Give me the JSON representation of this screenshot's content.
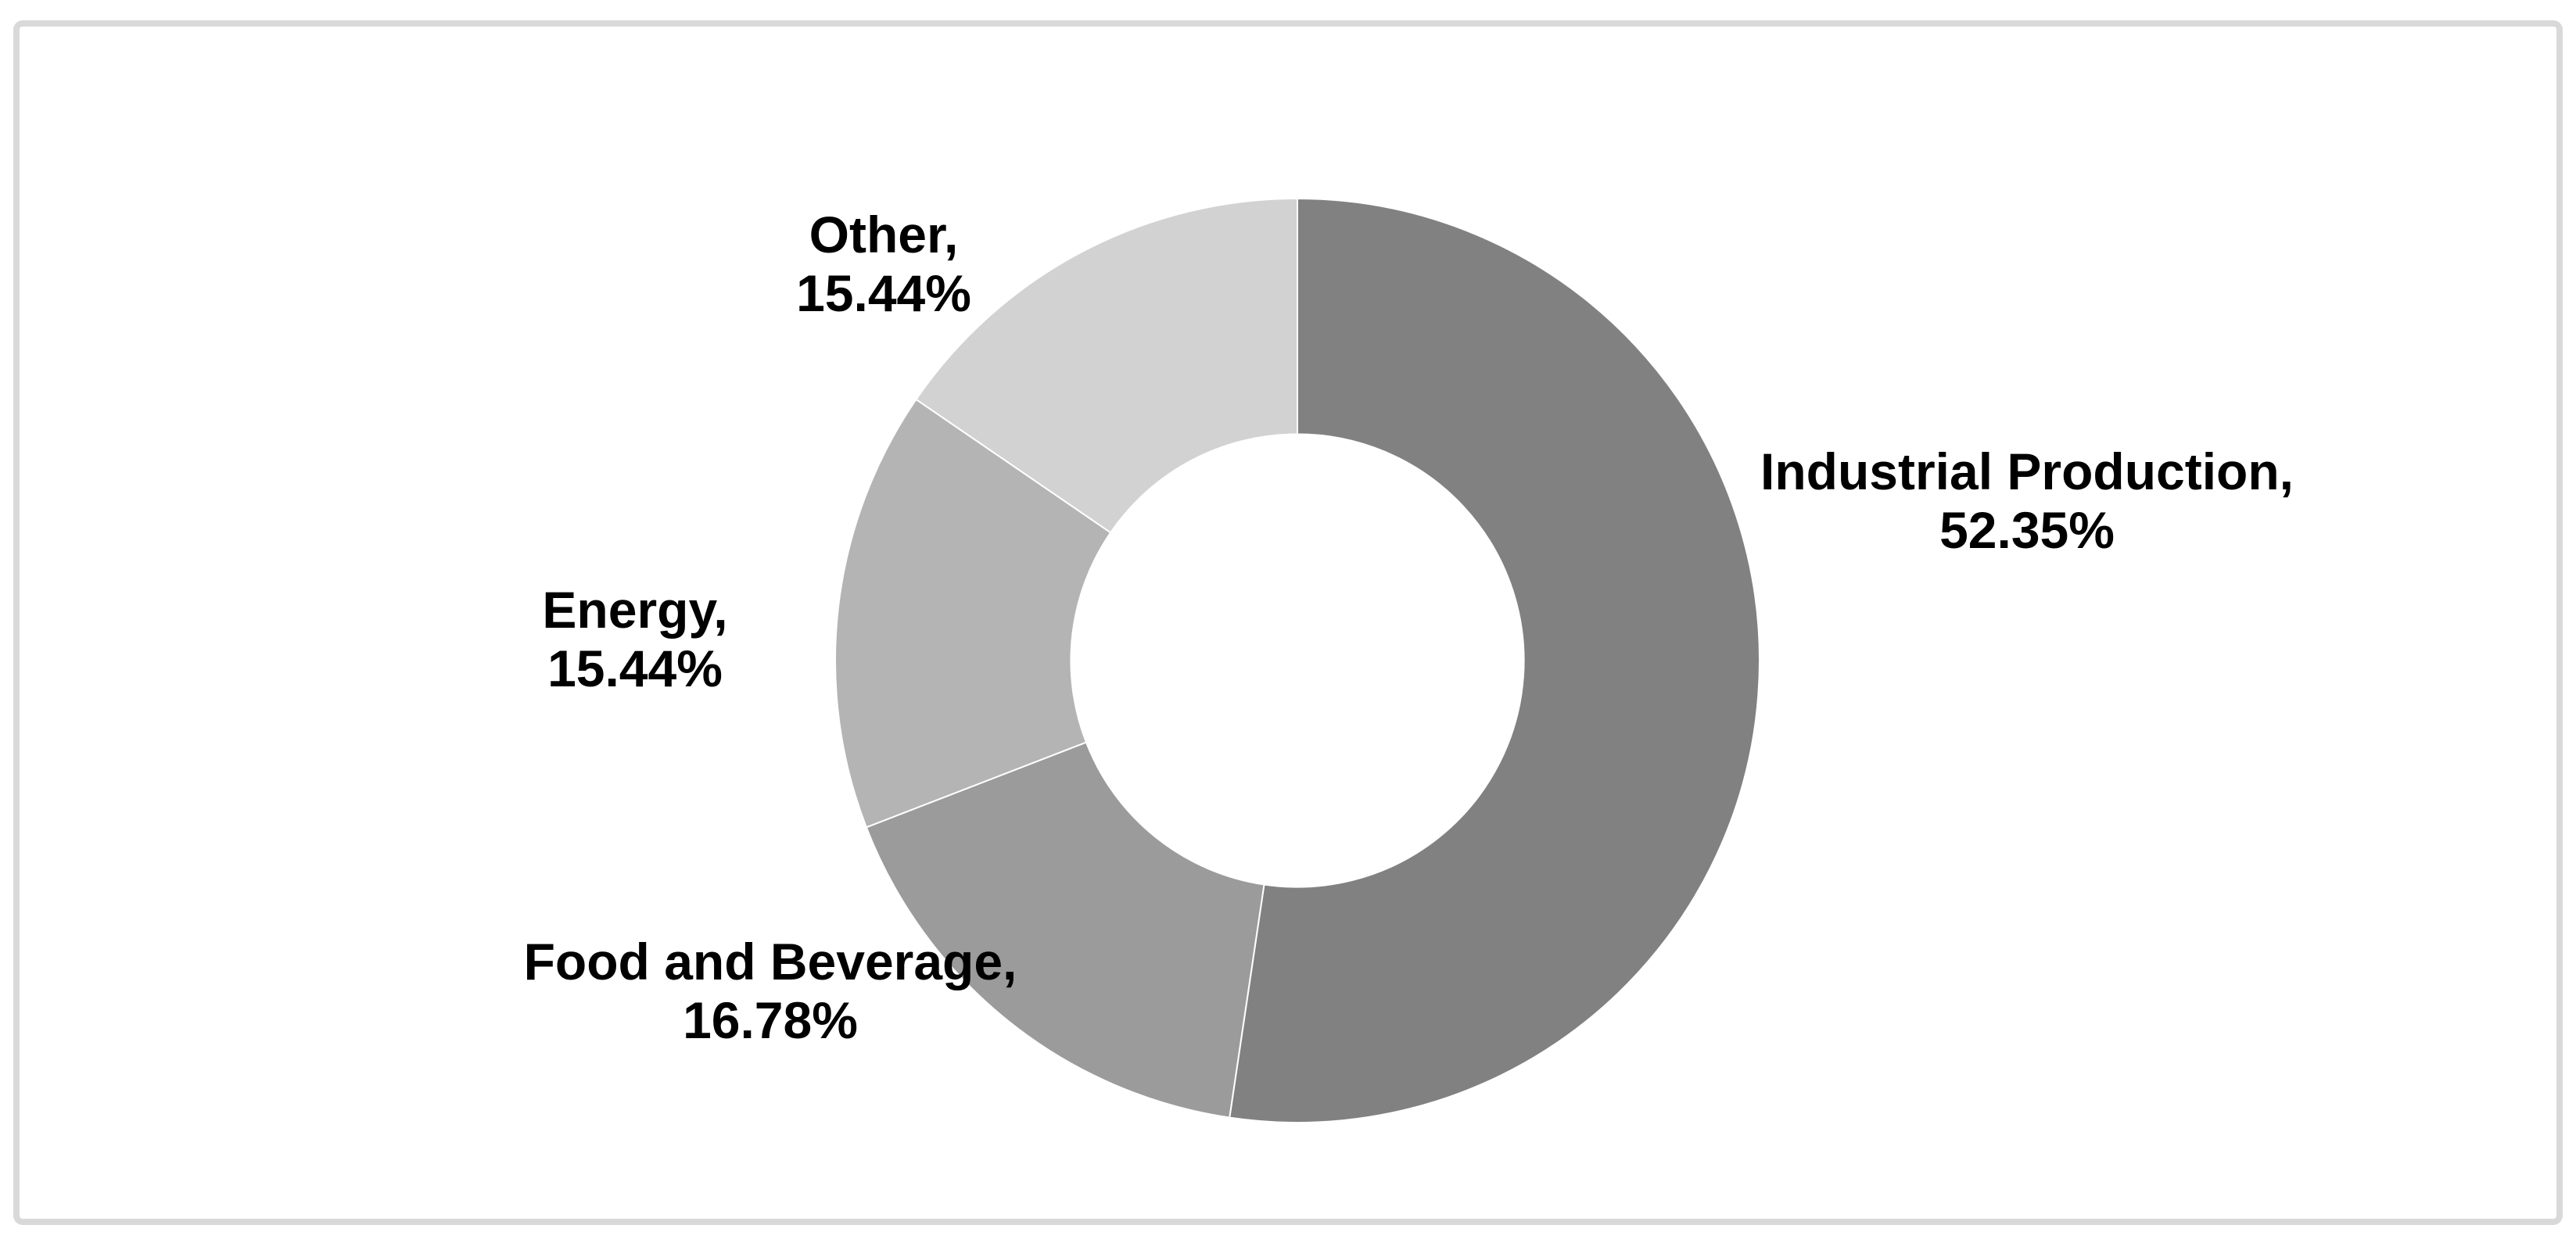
{
  "canvas": {
    "background": "#ffffff",
    "border_color": "#d9d9d9"
  },
  "chart_data": {
    "type": "pie",
    "subtype": "donut",
    "title": "",
    "xlabel": "",
    "ylabel": "",
    "legend": "none",
    "grid": false,
    "direction": "clockwise",
    "start_angle_deg": 0,
    "inner_radius_ratio": 0.49,
    "labels_shown": true,
    "label_format": "name, percent",
    "categories": [
      "Industrial Production",
      "Food and Beverage",
      "Energy",
      "Other"
    ],
    "values": [
      52.35,
      16.78,
      15.44,
      15.44
    ],
    "segments": [
      {
        "name": "Industrial Production",
        "value": 52.35,
        "label_line1": "Industrial Production,",
        "label_line2": "52.35%",
        "color": "#818181"
      },
      {
        "name": "Food and Beverage",
        "value": 16.78,
        "label_line1": "Food and Beverage,",
        "label_line2": "16.78%",
        "color": "#9b9b9b"
      },
      {
        "name": "Energy",
        "value": 15.44,
        "label_line1": "Energy,",
        "label_line2": "15.44%",
        "color": "#b4b4b4"
      },
      {
        "name": "Other",
        "value": 15.44,
        "label_line1": "Other,",
        "label_line2": "15.44%",
        "color": "#d2d2d2"
      }
    ]
  }
}
